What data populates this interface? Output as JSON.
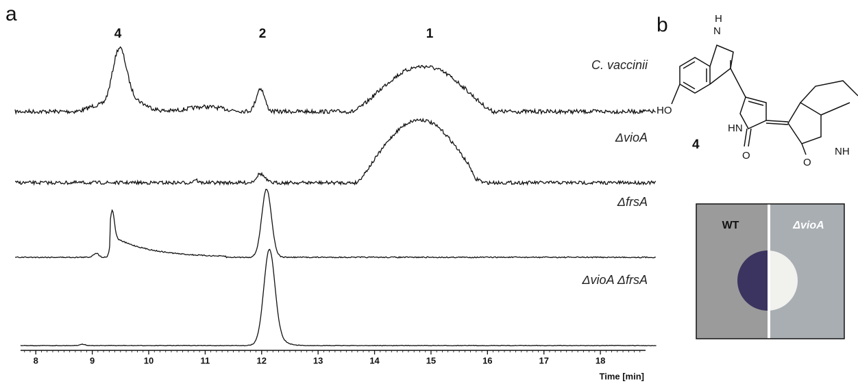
{
  "panels": {
    "a": "a",
    "b": "b"
  },
  "peaks": [
    "4",
    "2",
    "1"
  ],
  "traces": [
    "C. vaccinii",
    "ΔvioA",
    "ΔfrsA",
    "ΔvioA ΔfrsA"
  ],
  "x_axis": {
    "label": "Time [min]",
    "xlim": [
      7.73,
      18.8
    ],
    "xticks": [
      8,
      9,
      10,
      11,
      12,
      13,
      14,
      15,
      16,
      17,
      18
    ]
  },
  "structure": {
    "nh_h": "H",
    "nh_n": "N",
    "hydroxyl": "HO",
    "compound": "4",
    "lactam1": "HN",
    "oxygen1": "O",
    "oxygen2": "O",
    "lactam2": "NH"
  },
  "photo": {
    "left": "WT",
    "right": "ΔvioA"
  }
}
